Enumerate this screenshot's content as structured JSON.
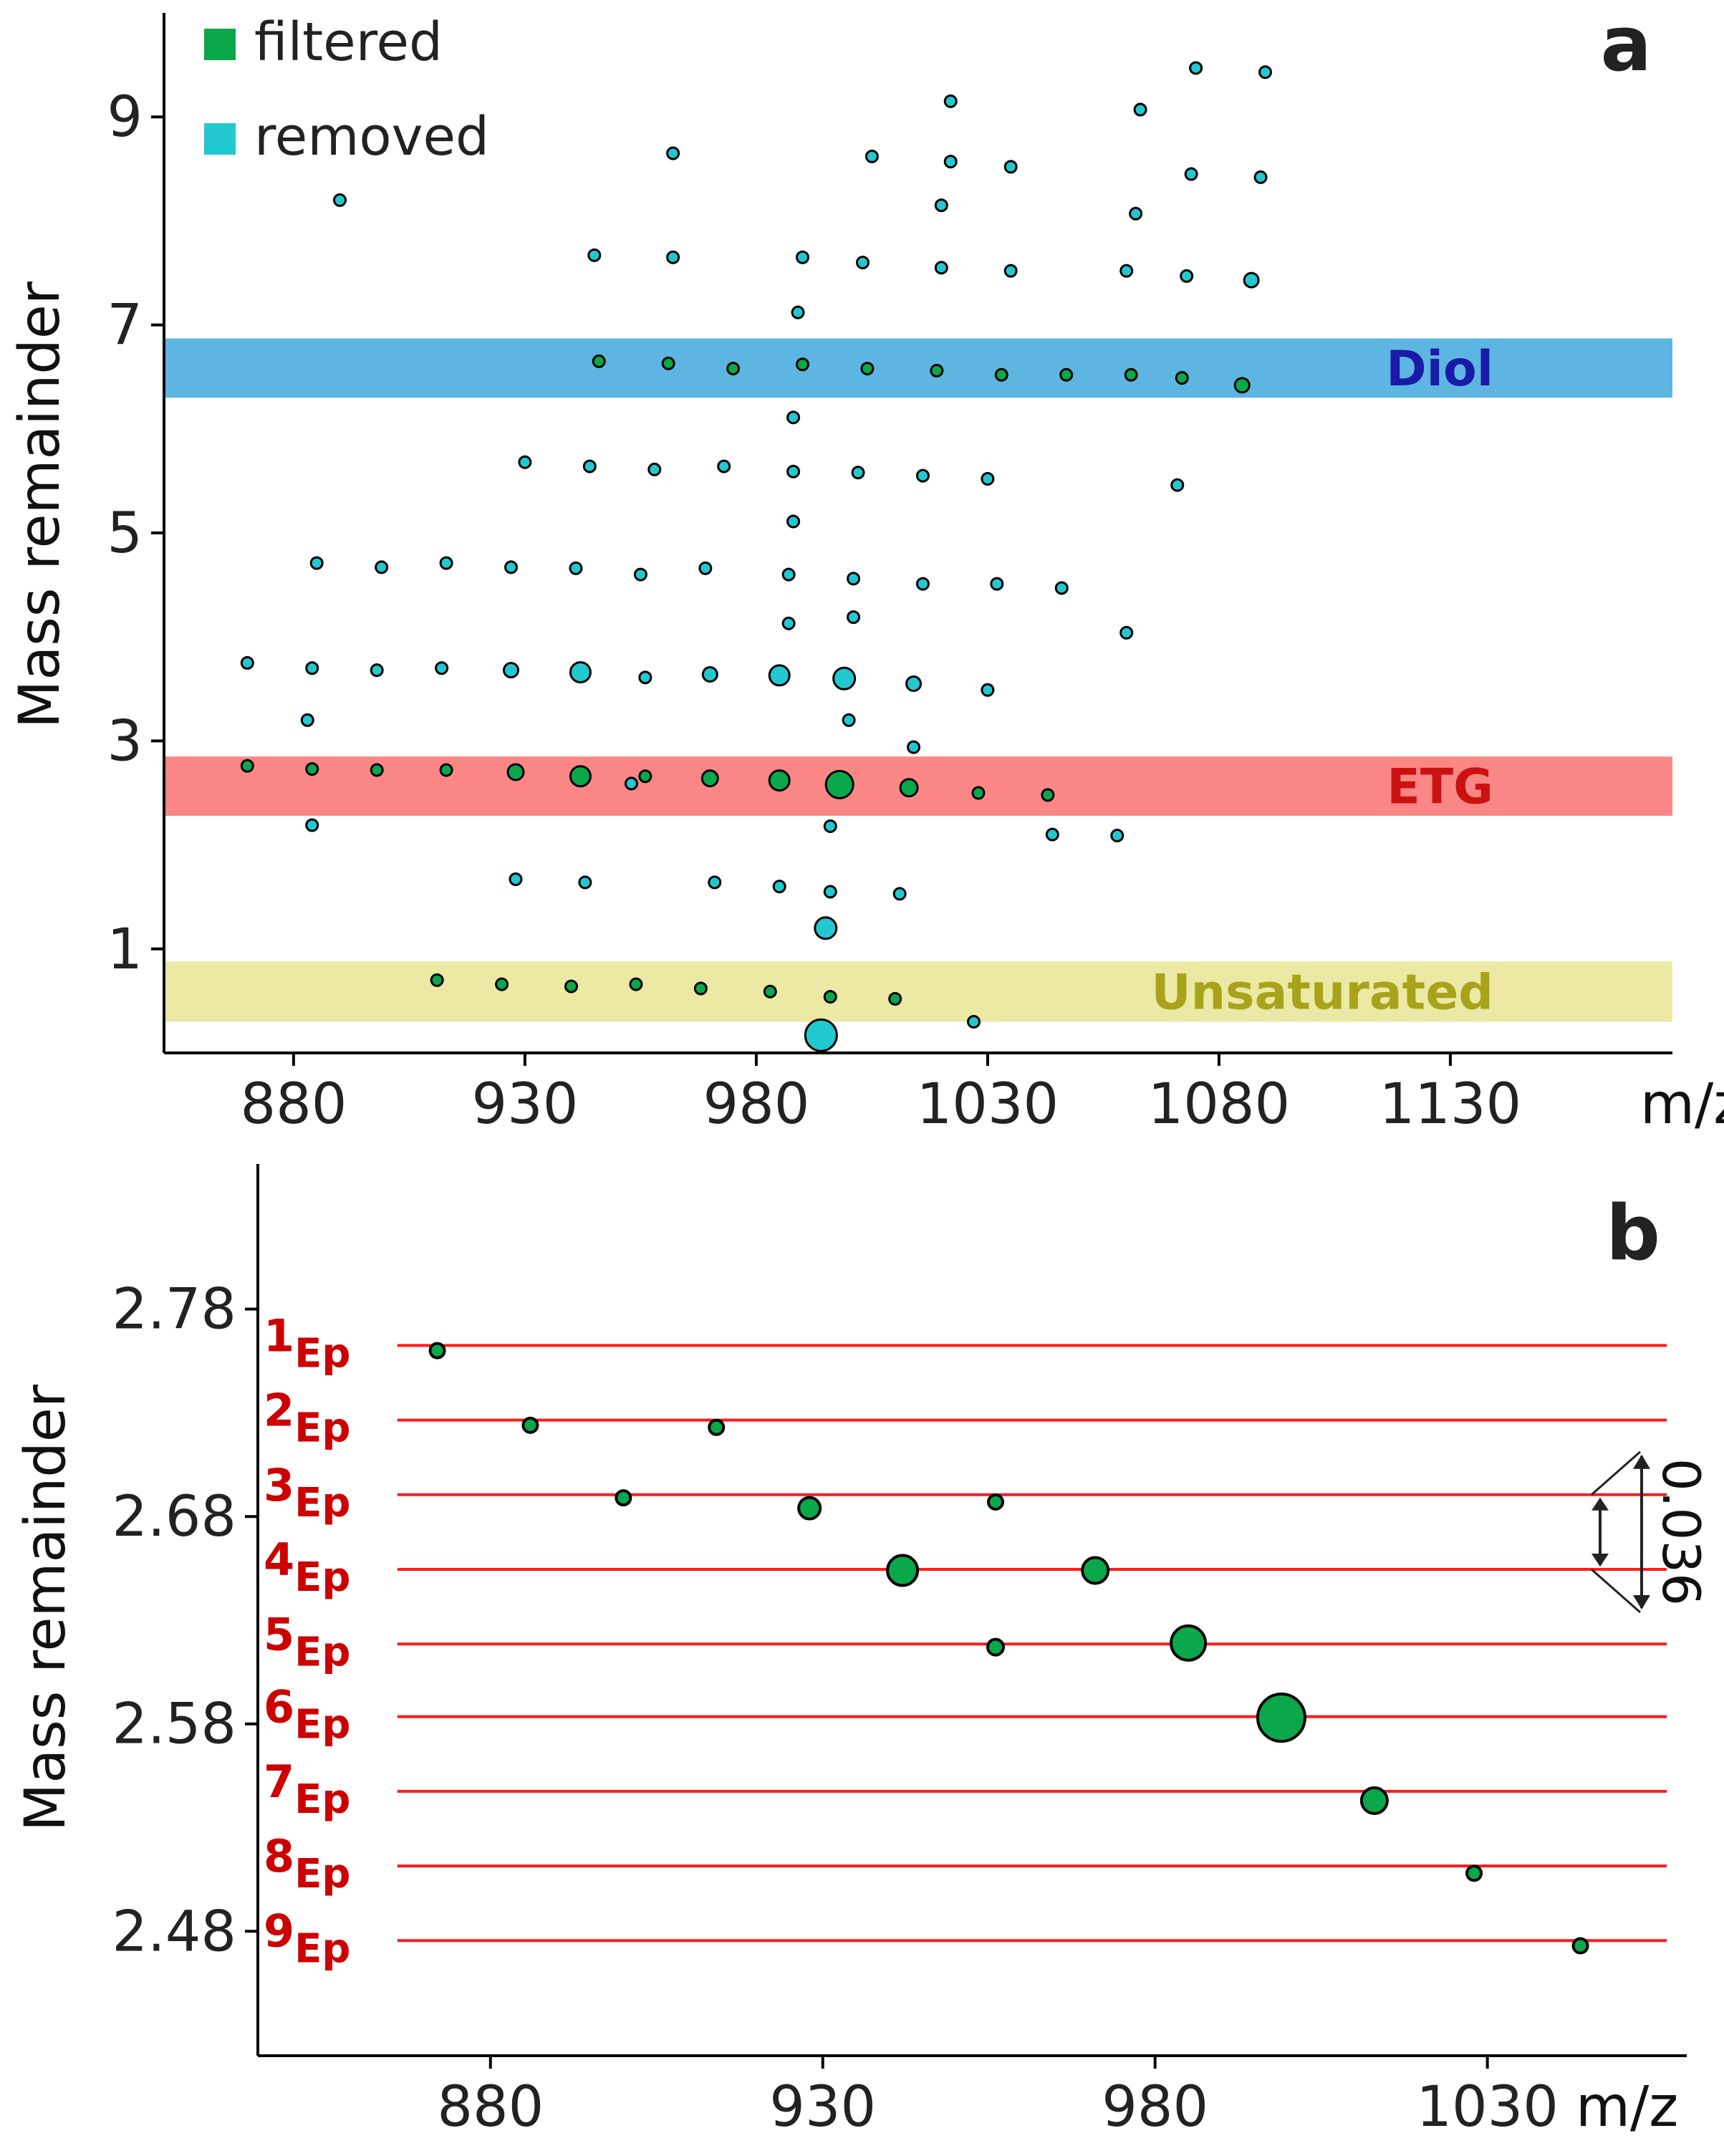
{
  "chart_data": [
    {
      "panel": "a",
      "type": "scatter",
      "xlabel": "m/z",
      "ylabel": "Mass remainder",
      "xlim": [
        852,
        1178
      ],
      "ylim": [
        0,
        10.0
      ],
      "xticks": [
        880,
        930,
        980,
        1030,
        1080,
        1130
      ],
      "yticks": [
        1,
        3,
        5,
        7,
        9
      ],
      "legend": {
        "position": "top-left",
        "entries": [
          {
            "name": "filtered",
            "color": "#0aa84a"
          },
          {
            "name": "removed",
            "color": "#22c8d0"
          }
        ]
      },
      "bands": [
        {
          "label": "Diol",
          "y_range": [
            6.3,
            6.87
          ],
          "fill": "#5db6e2",
          "text_color": "#1a1aa8"
        },
        {
          "label": "ETG",
          "y_range": [
            2.28,
            2.85
          ],
          "fill": "#fa8785",
          "text_color": "#cc1111"
        },
        {
          "label": "Unsaturated",
          "y_range": [
            0.3,
            0.88
          ],
          "fill": "#ece9a4",
          "text_color": "#a9a31c"
        }
      ],
      "series": [
        {
          "name": "removed",
          "color": "#22c8d0",
          "points": [
            [
              890,
              8.2
            ],
            [
              945,
              7.67
            ],
            [
              962,
              7.65
            ],
            [
              990,
              7.65
            ],
            [
              1003,
              7.6
            ],
            [
              1020,
              7.55
            ],
            [
              1035,
              7.52
            ],
            [
              1060,
              7.52
            ],
            [
              1073,
              7.47
            ],
            [
              1087,
              7.43
            ],
            [
              962,
              8.65
            ],
            [
              1005,
              8.62
            ],
            [
              1022,
              8.57
            ],
            [
              1035,
              8.52
            ],
            [
              1022,
              9.15
            ],
            [
              1063,
              9.07
            ],
            [
              1075,
              9.47
            ],
            [
              1090,
              9.43
            ],
            [
              1074,
              8.45
            ],
            [
              1089,
              8.42
            ],
            [
              1020,
              8.15
            ],
            [
              1062,
              8.07
            ],
            [
              989,
              7.12
            ],
            [
              988,
              6.11
            ],
            [
              930,
              5.68
            ],
            [
              944,
              5.64
            ],
            [
              958,
              5.61
            ],
            [
              973,
              5.64
            ],
            [
              988,
              5.59
            ],
            [
              1002,
              5.58
            ],
            [
              1016,
              5.55
            ],
            [
              1030,
              5.52
            ],
            [
              1071,
              5.46
            ],
            [
              988,
              5.11
            ],
            [
              885,
              4.71
            ],
            [
              899,
              4.67
            ],
            [
              913,
              4.71
            ],
            [
              927,
              4.67
            ],
            [
              941,
              4.66
            ],
            [
              955,
              4.6
            ],
            [
              969,
              4.66
            ],
            [
              987,
              4.6
            ],
            [
              1001,
              4.56
            ],
            [
              1016,
              4.51
            ],
            [
              1032,
              4.51
            ],
            [
              1046,
              4.47
            ],
            [
              1060,
              4.04
            ],
            [
              1001,
              4.19
            ],
            [
              987,
              4.13
            ],
            [
              870,
              3.75
            ],
            [
              884,
              3.7
            ],
            [
              898,
              3.68
            ],
            [
              912,
              3.7
            ],
            [
              927,
              3.68
            ],
            [
              942,
              3.66
            ],
            [
              956,
              3.61
            ],
            [
              970,
              3.64
            ],
            [
              985,
              3.63
            ],
            [
              999,
              3.6
            ],
            [
              1014,
              3.55
            ],
            [
              1030,
              3.49
            ],
            [
              883,
              3.2
            ],
            [
              1000,
              3.2
            ],
            [
              1014,
              2.94
            ],
            [
              953,
              2.59
            ],
            [
              884,
              2.19
            ],
            [
              996,
              2.18
            ],
            [
              1044,
              2.1
            ],
            [
              1058,
              2.09
            ],
            [
              928,
              1.67
            ],
            [
              943,
              1.64
            ],
            [
              971,
              1.64
            ],
            [
              985,
              1.6
            ],
            [
              996,
              1.55
            ],
            [
              1011,
              1.53
            ],
            [
              995,
              1.2
            ],
            [
              1027,
              0.3
            ],
            [
              994,
              0.17
            ]
          ],
          "sizes": [
            8,
            8,
            8,
            8,
            8,
            8,
            8,
            8,
            8,
            10,
            8,
            8,
            8,
            8,
            8,
            8,
            8,
            8,
            8,
            8,
            8,
            8,
            8,
            8,
            8,
            8,
            8,
            8,
            8,
            8,
            8,
            8,
            8,
            8,
            8,
            8,
            8,
            8,
            8,
            8,
            8,
            8,
            8,
            8,
            8,
            8,
            8,
            8,
            8,
            8,
            8,
            8,
            8,
            10,
            14,
            8,
            10,
            14,
            15,
            10,
            8,
            8,
            8,
            8,
            8,
            8,
            8,
            8,
            8,
            8,
            8,
            8,
            8,
            8,
            8,
            15,
            8,
            22
          ]
        },
        {
          "name": "filtered",
          "color": "#0aa84a",
          "points": [
            [
              946,
              6.65
            ],
            [
              961,
              6.63
            ],
            [
              975,
              6.58
            ],
            [
              990,
              6.62
            ],
            [
              1004,
              6.58
            ],
            [
              1019,
              6.56
            ],
            [
              1033,
              6.52
            ],
            [
              1047,
              6.52
            ],
            [
              1061,
              6.52
            ],
            [
              1072,
              6.49
            ],
            [
              1085,
              6.42
            ],
            [
              870,
              2.76
            ],
            [
              884,
              2.73
            ],
            [
              898,
              2.72
            ],
            [
              913,
              2.72
            ],
            [
              928,
              2.7
            ],
            [
              942,
              2.66
            ],
            [
              956,
              2.66
            ],
            [
              970,
              2.64
            ],
            [
              985,
              2.62
            ],
            [
              998,
              2.58
            ],
            [
              1013,
              2.55
            ],
            [
              1028,
              2.5
            ],
            [
              1043,
              2.48
            ],
            [
              911,
              0.7
            ],
            [
              925,
              0.66
            ],
            [
              940,
              0.64
            ],
            [
              954,
              0.66
            ],
            [
              968,
              0.62
            ],
            [
              983,
              0.59
            ],
            [
              996,
              0.54
            ],
            [
              1010,
              0.52
            ]
          ],
          "sizes": [
            8,
            8,
            8,
            8,
            8,
            8,
            8,
            8,
            8,
            8,
            10,
            8,
            8,
            8,
            8,
            11,
            14,
            8,
            11,
            14,
            19,
            12,
            8,
            8,
            8,
            8,
            8,
            8,
            8,
            8,
            8,
            8
          ]
        }
      ]
    },
    {
      "panel": "b",
      "type": "scatter",
      "xlabel": "m/z",
      "ylabel": "Mass remainder",
      "xlim": [
        845,
        1060
      ],
      "ylim": [
        2.42,
        2.85
      ],
      "xticks": [
        880,
        930,
        980,
        1030
      ],
      "yticks": [
        2.48,
        2.58,
        2.68,
        2.78
      ],
      "levels": [
        {
          "label": "1",
          "sub": "Ep",
          "y": 2.7625
        },
        {
          "label": "2",
          "sub": "Ep",
          "y": 2.7265
        },
        {
          "label": "3",
          "sub": "Ep",
          "y": 2.6905
        },
        {
          "label": "4",
          "sub": "Ep",
          "y": 2.6545
        },
        {
          "label": "5",
          "sub": "Ep",
          "y": 2.6185
        },
        {
          "label": "6",
          "sub": "Ep",
          "y": 2.5835
        },
        {
          "label": "7",
          "sub": "Ep",
          "y": 2.5475
        },
        {
          "label": "8",
          "sub": "Ep",
          "y": 2.5115
        },
        {
          "label": "9",
          "sub": "Ep",
          "y": 2.4755
        }
      ],
      "level_line_color": "#ff1a1a",
      "level_label_color": "#cc0000",
      "level_x_range": [
        866,
        1057
      ],
      "annotation": {
        "text": "0.036",
        "y_range": [
          2.6545,
          2.6905
        ]
      },
      "series": [
        {
          "name": "filtered",
          "color": "#0aa84a",
          "points": [
            [
              872,
              2.76
            ],
            [
              886,
              2.724
            ],
            [
              914,
              2.723
            ],
            [
              900,
              2.689
            ],
            [
              928,
              2.684
            ],
            [
              956,
              2.687
            ],
            [
              942,
              2.654
            ],
            [
              971,
              2.654
            ],
            [
              956,
              2.617
            ],
            [
              985,
              2.619
            ],
            [
              999,
              2.583
            ],
            [
              1013,
              2.543
            ],
            [
              1028,
              2.508
            ],
            [
              1044,
              2.473
            ]
          ],
          "sizes": [
            10,
            10,
            10,
            10,
            15,
            10,
            21,
            18,
            11,
            24,
            33,
            18,
            10,
            10
          ]
        }
      ]
    }
  ],
  "panels": {
    "a": {
      "letter": "a"
    },
    "b": {
      "letter": "b"
    }
  }
}
